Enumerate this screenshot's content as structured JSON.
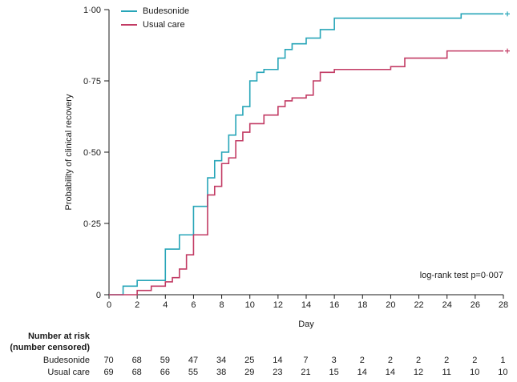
{
  "chart_data": {
    "type": "line",
    "step": true,
    "title": "",
    "xlabel": "Day",
    "ylabel": "Probability of clinical recovery",
    "xlim": [
      0,
      28
    ],
    "ylim": [
      0,
      1
    ],
    "grid": false,
    "legend_position": "top-left",
    "annotation": "log-rank test p=0·007",
    "x_tick_values": [
      0,
      2,
      4,
      6,
      8,
      10,
      12,
      14,
      16,
      18,
      20,
      22,
      24,
      26,
      28
    ],
    "x_tick_labels": [
      "0",
      "2",
      "4",
      "6",
      "8",
      "10",
      "12",
      "14",
      "16",
      "18",
      "20",
      "22",
      "24",
      "26",
      "28"
    ],
    "y_tick_values": [
      0,
      0.25,
      0.5,
      0.75,
      1
    ],
    "y_tick_labels": [
      "0",
      "0·25",
      "0·50",
      "0·75",
      "1·00"
    ],
    "series": [
      {
        "name": "Budesonide",
        "color": "#27a5b8",
        "points": [
          [
            0,
            0
          ],
          [
            1,
            0.03
          ],
          [
            2,
            0.05
          ],
          [
            4,
            0.16
          ],
          [
            5,
            0.21
          ],
          [
            6,
            0.31
          ],
          [
            7,
            0.41
          ],
          [
            7.5,
            0.47
          ],
          [
            8,
            0.5
          ],
          [
            8.5,
            0.56
          ],
          [
            9,
            0.63
          ],
          [
            9.5,
            0.66
          ],
          [
            10,
            0.75
          ],
          [
            10.5,
            0.78
          ],
          [
            11,
            0.79
          ],
          [
            12,
            0.83
          ],
          [
            12.5,
            0.86
          ],
          [
            13,
            0.88
          ],
          [
            14,
            0.9
          ],
          [
            15,
            0.93
          ],
          [
            16,
            0.97
          ],
          [
            25,
            0.985
          ]
        ],
        "censor_marks": [
          [
            28,
            0.985
          ]
        ]
      },
      {
        "name": "Usual care",
        "color": "#c23b64",
        "points": [
          [
            0,
            0
          ],
          [
            2,
            0.015
          ],
          [
            3,
            0.03
          ],
          [
            4,
            0.045
          ],
          [
            4.5,
            0.06
          ],
          [
            5,
            0.09
          ],
          [
            5.5,
            0.14
          ],
          [
            6,
            0.21
          ],
          [
            7,
            0.35
          ],
          [
            7.5,
            0.38
          ],
          [
            8,
            0.46
          ],
          [
            8.5,
            0.48
          ],
          [
            9,
            0.54
          ],
          [
            9.5,
            0.57
          ],
          [
            10,
            0.6
          ],
          [
            11,
            0.63
          ],
          [
            12,
            0.66
          ],
          [
            12.5,
            0.68
          ],
          [
            13,
            0.69
          ],
          [
            14,
            0.7
          ],
          [
            14.5,
            0.75
          ],
          [
            15,
            0.78
          ],
          [
            16,
            0.79
          ],
          [
            20,
            0.8
          ],
          [
            21,
            0.83
          ],
          [
            24,
            0.855
          ]
        ],
        "censor_marks": [
          [
            28,
            0.855
          ]
        ]
      }
    ]
  },
  "risk_table": {
    "header_line1": "Number at risk",
    "header_line2": "(number censored)",
    "rows": [
      {
        "label": "Budesonide",
        "values": [
          "70",
          "68",
          "59",
          "47",
          "34",
          "25",
          "14",
          "7",
          "3",
          "2",
          "2",
          "2",
          "2",
          "2",
          "1"
        ]
      },
      {
        "label": "Usual care",
        "values": [
          "69",
          "68",
          "66",
          "55",
          "38",
          "29",
          "23",
          "21",
          "15",
          "14",
          "14",
          "12",
          "11",
          "10",
          "10"
        ]
      }
    ]
  }
}
